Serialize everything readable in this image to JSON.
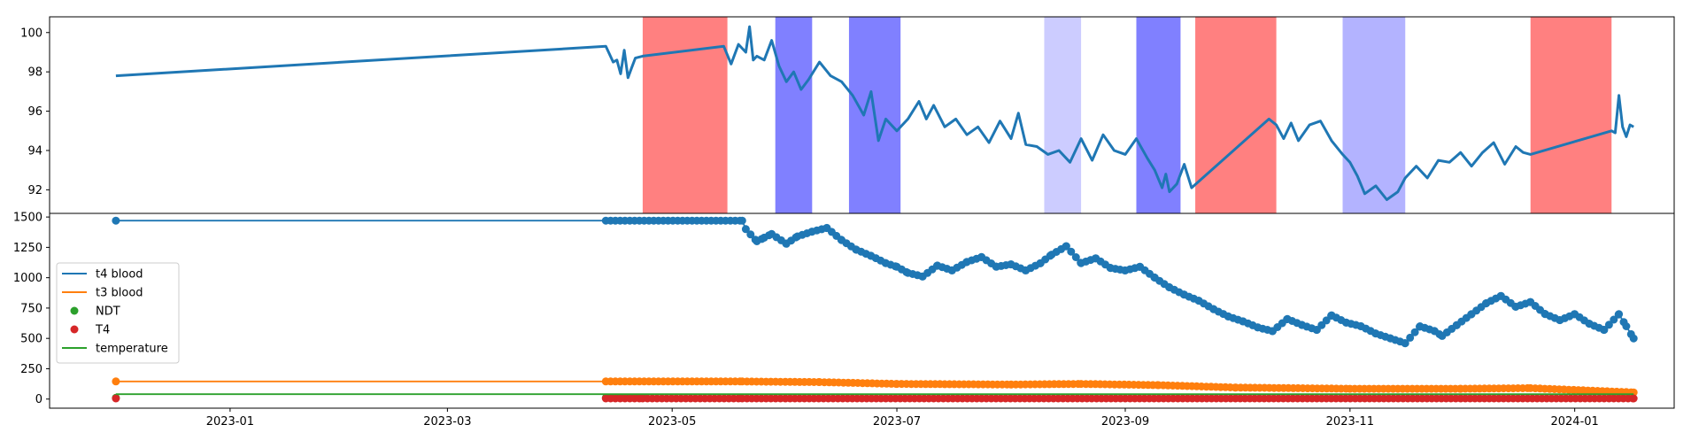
{
  "chart_data": [
    {
      "type": "line",
      "panel": "top",
      "ylim": [
        90.8,
        100.8
      ],
      "xlim": [
        "2022-11-13",
        "2024-01-28"
      ],
      "yticks": [
        92,
        94,
        96,
        98,
        100
      ],
      "ytick_labels": [
        "92",
        "94",
        "96",
        "98",
        "100"
      ],
      "grid": false,
      "bands": [
        {
          "start": "2023-04-23",
          "end": "2023-05-16",
          "color": "#ff8080"
        },
        {
          "start": "2023-05-29",
          "end": "2023-06-08",
          "color": "#8080ff"
        },
        {
          "start": "2023-06-18",
          "end": "2023-07-02",
          "color": "#8080ff"
        },
        {
          "start": "2023-08-10",
          "end": "2023-08-20",
          "color": "#ccccff"
        },
        {
          "start": "2023-09-04",
          "end": "2023-09-16",
          "color": "#8080ff"
        },
        {
          "start": "2023-09-20",
          "end": "2023-10-12",
          "color": "#ff8080"
        },
        {
          "start": "2023-10-30",
          "end": "2023-11-16",
          "color": "#b3b3ff"
        },
        {
          "start": "2023-12-20",
          "end": "2024-01-11",
          "color": "#ff8080"
        }
      ],
      "series": [
        {
          "color": "#1f77b4",
          "x": [
            "2022-12-01",
            "2023-04-13",
            "2023-04-15",
            "2023-04-16",
            "2023-04-17",
            "2023-04-18",
            "2023-04-19",
            "2023-04-20",
            "2023-04-21",
            "2023-04-23",
            "2023-05-15",
            "2023-05-17",
            "2023-05-19",
            "2023-05-21",
            "2023-05-22",
            "2023-05-23",
            "2023-05-24",
            "2023-05-26",
            "2023-05-28",
            "2023-05-30",
            "2023-06-01",
            "2023-06-03",
            "2023-06-05",
            "2023-06-07",
            "2023-06-10",
            "2023-06-13",
            "2023-06-16",
            "2023-06-19",
            "2023-06-22",
            "2023-06-24",
            "2023-06-26",
            "2023-06-28",
            "2023-07-01",
            "2023-07-04",
            "2023-07-07",
            "2023-07-09",
            "2023-07-11",
            "2023-07-14",
            "2023-07-17",
            "2023-07-20",
            "2023-07-23",
            "2023-07-26",
            "2023-07-29",
            "2023-08-01",
            "2023-08-03",
            "2023-08-05",
            "2023-08-08",
            "2023-08-11",
            "2023-08-14",
            "2023-08-17",
            "2023-08-20",
            "2023-08-23",
            "2023-08-26",
            "2023-08-29",
            "2023-09-01",
            "2023-09-04",
            "2023-09-07",
            "2023-09-09",
            "2023-09-11",
            "2023-09-12",
            "2023-09-13",
            "2023-09-15",
            "2023-09-17",
            "2023-09-19",
            "2023-10-10",
            "2023-10-12",
            "2023-10-14",
            "2023-10-16",
            "2023-10-18",
            "2023-10-21",
            "2023-10-24",
            "2023-10-27",
            "2023-10-30",
            "2023-11-01",
            "2023-11-03",
            "2023-11-05",
            "2023-11-08",
            "2023-11-11",
            "2023-11-14",
            "2023-11-16",
            "2023-11-19",
            "2023-11-22",
            "2023-11-25",
            "2023-11-28",
            "2023-12-01",
            "2023-12-04",
            "2023-12-07",
            "2023-12-10",
            "2023-12-13",
            "2023-12-16",
            "2023-12-18",
            "2023-12-20",
            "2024-01-11",
            "2024-01-12",
            "2024-01-13",
            "2024-01-14",
            "2024-01-15",
            "2024-01-16",
            "2024-01-17"
          ],
          "y": [
            97.8,
            99.3,
            98.5,
            98.6,
            97.9,
            99.1,
            97.7,
            98.2,
            98.7,
            98.8,
            99.3,
            98.4,
            99.4,
            99.0,
            100.3,
            98.6,
            98.8,
            98.6,
            99.6,
            98.3,
            97.5,
            98.0,
            97.1,
            97.6,
            98.5,
            97.8,
            97.5,
            96.8,
            95.8,
            97.0,
            94.5,
            95.6,
            95.0,
            95.6,
            96.5,
            95.6,
            96.3,
            95.2,
            95.6,
            94.8,
            95.2,
            94.4,
            95.5,
            94.6,
            95.9,
            94.3,
            94.2,
            93.8,
            94.0,
            93.4,
            94.6,
            93.5,
            94.8,
            94.0,
            93.8,
            94.6,
            93.6,
            93.0,
            92.1,
            92.8,
            91.9,
            92.3,
            93.3,
            92.1,
            95.6,
            95.3,
            94.6,
            95.4,
            94.5,
            95.3,
            95.5,
            94.5,
            93.8,
            93.4,
            92.7,
            91.8,
            92.2,
            91.5,
            91.9,
            92.6,
            93.2,
            92.6,
            93.5,
            93.4,
            93.9,
            93.2,
            93.9,
            94.4,
            93.3,
            94.2,
            93.9,
            93.8,
            95.0,
            94.9,
            96.8,
            95.2,
            94.7,
            95.3,
            95.2
          ]
        }
      ]
    },
    {
      "type": "line",
      "panel": "bottom",
      "ylim": [
        -75,
        1530
      ],
      "yticks": [
        0,
        250,
        500,
        750,
        1000,
        1250,
        1500
      ],
      "ytick_labels": [
        "0",
        "250",
        "500",
        "750",
        "1000",
        "1250",
        "1500"
      ],
      "xticks": [
        "2023-01-01",
        "2023-03-01",
        "2023-05-01",
        "2023-07-01",
        "2023-09-01",
        "2023-11-01",
        "2024-01-01"
      ],
      "xtick_labels": [
        "2023-01",
        "2023-03",
        "2023-05",
        "2023-07",
        "2023-09",
        "2023-11",
        "2024-01"
      ],
      "grid": false,
      "legend": {
        "placement": "center-left",
        "entries": [
          "t4 blood",
          "t3 blood",
          "NDT",
          "T4",
          "temperature"
        ]
      },
      "series": [
        {
          "name": "t4 blood",
          "style": "line+markers",
          "color": "#1f77b4",
          "x": [
            "2022-12-01",
            "2023-04-13",
            "2023-05-20",
            "2023-05-21",
            "2023-05-24",
            "2023-05-26",
            "2023-05-28",
            "2023-06-01",
            "2023-06-04",
            "2023-06-08",
            "2023-06-12",
            "2023-06-16",
            "2023-06-20",
            "2023-06-24",
            "2023-06-28",
            "2023-07-01",
            "2023-07-04",
            "2023-07-08",
            "2023-07-12",
            "2023-07-16",
            "2023-07-20",
            "2023-07-24",
            "2023-07-28",
            "2023-08-01",
            "2023-08-05",
            "2023-08-09",
            "2023-08-12",
            "2023-08-16",
            "2023-08-20",
            "2023-08-24",
            "2023-08-28",
            "2023-09-01",
            "2023-09-05",
            "2023-09-09",
            "2023-09-13",
            "2023-09-17",
            "2023-09-21",
            "2023-09-25",
            "2023-09-29",
            "2023-10-03",
            "2023-10-07",
            "2023-10-11",
            "2023-10-15",
            "2023-10-19",
            "2023-10-23",
            "2023-10-27",
            "2023-10-31",
            "2023-11-04",
            "2023-11-08",
            "2023-11-12",
            "2023-11-16",
            "2023-11-20",
            "2023-11-24",
            "2023-11-26",
            "2023-11-30",
            "2023-12-04",
            "2023-12-08",
            "2023-12-12",
            "2023-12-16",
            "2023-12-20",
            "2023-12-24",
            "2023-12-28",
            "2024-01-01",
            "2024-01-05",
            "2024-01-09",
            "2024-01-13",
            "2024-01-15",
            "2024-01-17"
          ],
          "y": [
            1470,
            1470,
            1470,
            1400,
            1300,
            1330,
            1360,
            1280,
            1340,
            1380,
            1410,
            1310,
            1230,
            1180,
            1120,
            1090,
            1040,
            1010,
            1100,
            1060,
            1130,
            1170,
            1090,
            1110,
            1060,
            1120,
            1190,
            1260,
            1120,
            1160,
            1080,
            1060,
            1090,
            1000,
            920,
            860,
            810,
            740,
            680,
            640,
            590,
            560,
            660,
            610,
            570,
            690,
            630,
            600,
            540,
            500,
            460,
            600,
            560,
            520,
            610,
            700,
            790,
            850,
            760,
            800,
            700,
            650,
            700,
            620,
            570,
            700,
            600,
            500
          ]
        },
        {
          "name": "t3 blood",
          "style": "line+markers",
          "color": "#ff7f0e",
          "x": [
            "2022-12-01",
            "2023-04-13",
            "2023-05-20",
            "2023-06-10",
            "2023-07-01",
            "2023-08-01",
            "2023-08-20",
            "2023-09-10",
            "2023-10-01",
            "2023-11-01",
            "2023-12-01",
            "2023-12-20",
            "2024-01-17"
          ],
          "y": [
            145,
            145,
            145,
            140,
            125,
            120,
            125,
            115,
            95,
            85,
            85,
            90,
            55
          ]
        },
        {
          "name": "NDT",
          "style": "markers",
          "color": "#2ca02c",
          "x": [
            "2022-12-01",
            "2023-04-13",
            "2023-04-23"
          ],
          "y": [
            10,
            10,
            10
          ]
        },
        {
          "name": "T4",
          "style": "markers",
          "color": "#d62728",
          "x": [
            "2022-12-01",
            "2023-04-13",
            "2023-04-23",
            "2023-05-20",
            "2024-01-17"
          ],
          "y": [
            5,
            5,
            5,
            5,
            5
          ]
        },
        {
          "name": "temperature",
          "style": "line",
          "color": "#2ca02c",
          "x": [
            "2022-12-01",
            "2023-04-13",
            "2024-01-17"
          ],
          "y": [
            40,
            40,
            40
          ]
        }
      ]
    }
  ]
}
